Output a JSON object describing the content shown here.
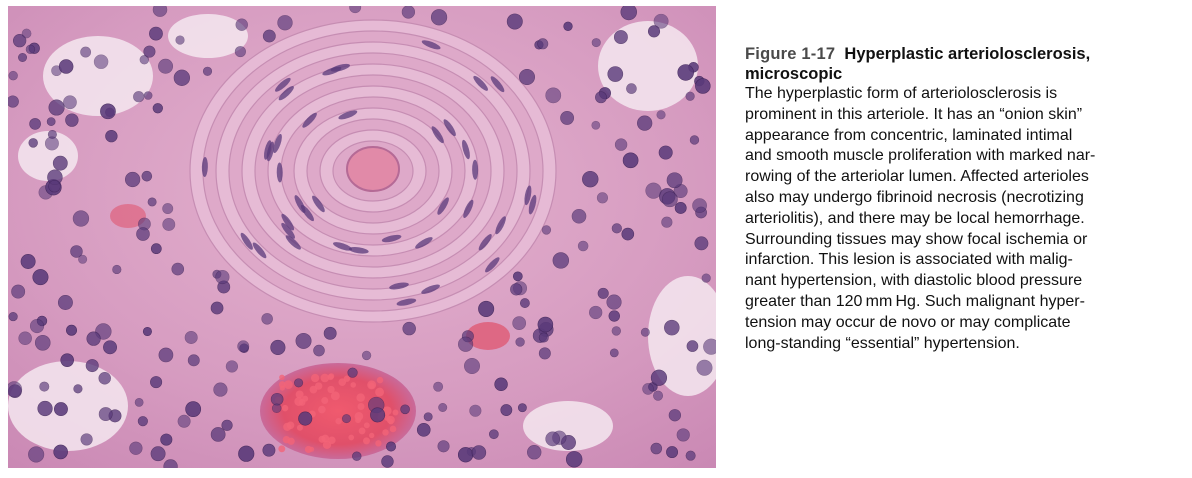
{
  "figure": {
    "image_alt": "Micrograph of hyperplastic arteriolosclerosis (H&E stain)",
    "image_description": "micrograph",
    "colors": {
      "background_stroma": "#d9a0c2",
      "nuclei": "#5a3a7a",
      "lumen": "#f4e8f0",
      "hemorrhage": "#e0506a",
      "onion_skin_layers": "#e7bcd6"
    }
  },
  "caption": {
    "figure_label": "Figure 1-17",
    "title": "Hyperplastic arteriolosclerosis, microscopic",
    "body_lines": [
      "The hyperplastic form of arteriolosclerosis is",
      "prominent in this arteriole. It has an “onion skin”",
      "appearance from concentric, laminated intimal",
      "and smooth muscle proliferation with marked nar-",
      "rowing of the arteriolar lumen. Affected arterioles",
      "also may undergo fibrinoid necrosis (necrotizing",
      "arteriolitis), and there may be local hemorrhage.",
      "Surrounding tissues may show focal ischemia or",
      "infarction. This lesion is associated with malig-",
      "nant hypertension, with diastolic blood pressure",
      "greater than 120 mm Hg. Such malignant hyper-",
      "tension may occur de novo or may complicate",
      "long-standing “essential” hypertension."
    ]
  }
}
